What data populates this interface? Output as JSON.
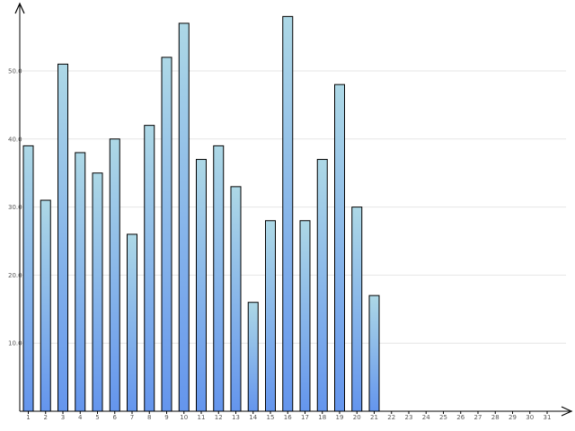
{
  "chart_data": {
    "type": "bar",
    "categories": [
      "1",
      "2",
      "3",
      "4",
      "5",
      "6",
      "7",
      "8",
      "9",
      "10",
      "11",
      "12",
      "13",
      "14",
      "15",
      "16",
      "17",
      "18",
      "19",
      "20",
      "21",
      "22",
      "23",
      "24",
      "25",
      "26",
      "27",
      "28",
      "29",
      "30",
      "31"
    ],
    "values": [
      39,
      31,
      51,
      38,
      35,
      40,
      26,
      42,
      52,
      57,
      37,
      39,
      33,
      16,
      28,
      58,
      28,
      37,
      48,
      30,
      17,
      null,
      null,
      null,
      null,
      null,
      null,
      null,
      null,
      null,
      null
    ],
    "ylim": [
      0,
      60
    ],
    "yticks": [
      10,
      20,
      30,
      40,
      50
    ],
    "ytick_labels": [
      "10.0",
      "20.0",
      "30.0",
      "40.0",
      "50.0"
    ],
    "grid": true,
    "title": "",
    "xlabel": "",
    "ylabel": ""
  },
  "colors": {
    "bar_top": "#add8e6",
    "bar_bottom": "#6495ed",
    "bar_stroke": "#000000",
    "grid": "#e6e6e6",
    "axis": "#000000"
  }
}
